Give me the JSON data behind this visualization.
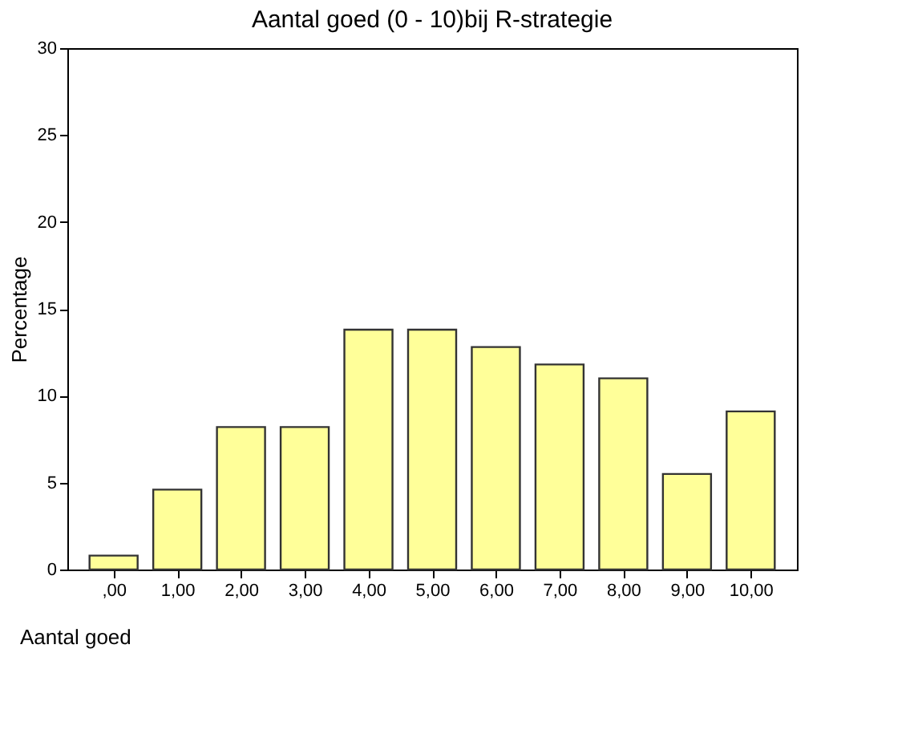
{
  "chart_data": {
    "type": "bar",
    "title": "Aantal goed (0 - 10)bij R-strategie",
    "xlabel": "Aantal goed",
    "ylabel": "Percentage",
    "categories": [
      ",00",
      "1,00",
      "2,00",
      "3,00",
      "4,00",
      "5,00",
      "6,00",
      "7,00",
      "8,00",
      "9,00",
      "10,00"
    ],
    "values": [
      0.8,
      4.6,
      8.2,
      8.2,
      13.8,
      13.8,
      12.8,
      11.8,
      11.0,
      5.5,
      9.1
    ],
    "color": "#ffff99",
    "ylim": [
      0,
      30
    ],
    "yticks": [
      0,
      5,
      10,
      15,
      20,
      25,
      30
    ],
    "grid": false
  }
}
